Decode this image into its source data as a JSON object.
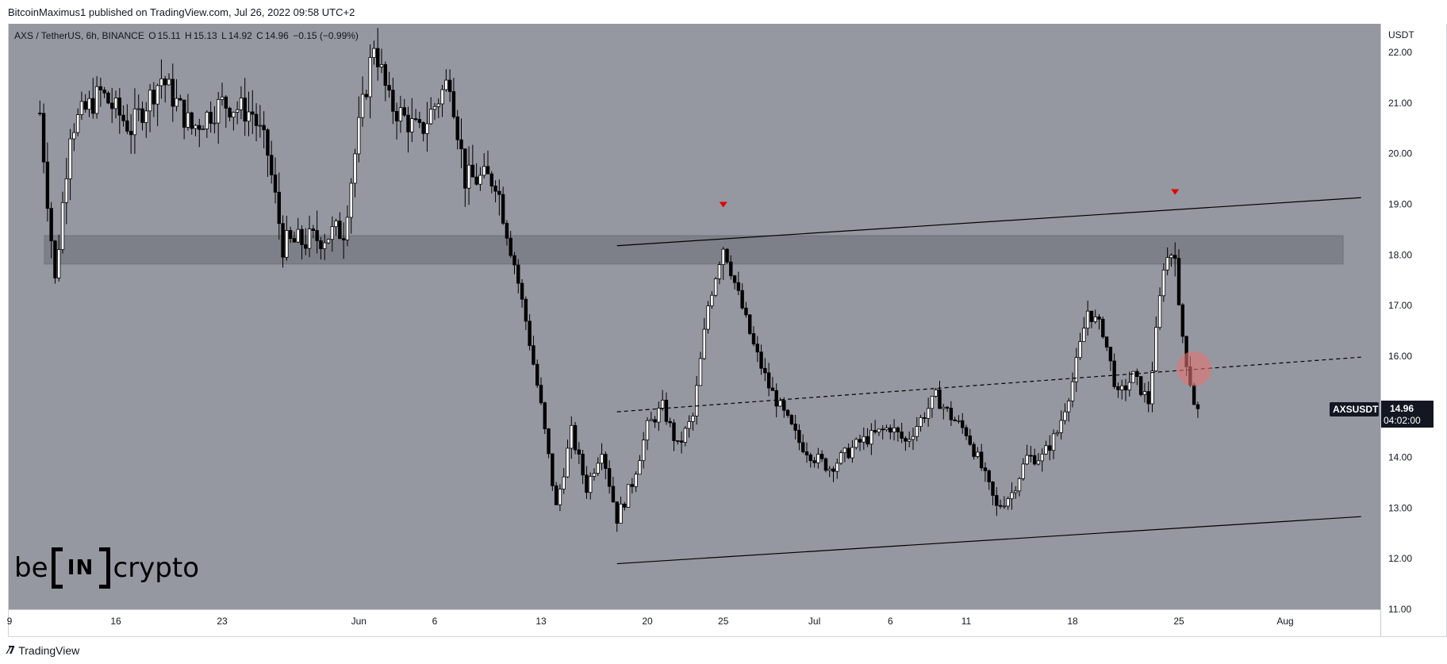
{
  "header": {
    "publisher": "BitcoinMaximus1 published on TradingView.com, Jul 26, 2022 09:58 UTC+2"
  },
  "legend": {
    "symbol": "AXS / TetherUS, 6h, BINANCE",
    "o_label": "O",
    "o_value": "15.11",
    "h_label": "H",
    "h_value": "15.13",
    "l_label": "L",
    "l_value": "14.92",
    "c_label": "C",
    "c_value": "14.96",
    "change": "−0.15 (−0.99%)"
  },
  "price_badge": {
    "ticker": "AXSUSDT",
    "price": "14.96",
    "countdown": "04:02:00"
  },
  "footer": {
    "brand": "TradingView"
  },
  "brand_logo": {
    "left": "be",
    "box": "IN",
    "right": "crypto"
  },
  "colors": {
    "chart_bg": "#9598a1",
    "candle": "#000000",
    "zone": "#7d8088",
    "marker": "#e00000",
    "circle": "#e57373"
  },
  "chart_data": {
    "type": "candlestick",
    "symbol": "AXS / TetherUS",
    "interval": "6h",
    "exchange": "BINANCE",
    "y_axis_unit": "USDT",
    "ylim": [
      10.92,
      22.6
    ],
    "y_ticks": [
      "22.00",
      "21.00",
      "20.00",
      "19.00",
      "18.00",
      "17.00",
      "16.00",
      "15.00",
      "14.00",
      "13.00",
      "12.00",
      "11.00"
    ],
    "x_ticks": [
      {
        "label": "9",
        "date": "2022-05-09"
      },
      {
        "label": "16",
        "date": "2022-05-16"
      },
      {
        "label": "23",
        "date": "2022-05-23"
      },
      {
        "label": "Jun",
        "date": "2022-06-01"
      },
      {
        "label": "6",
        "date": "2022-06-06"
      },
      {
        "label": "13",
        "date": "2022-06-13"
      },
      {
        "label": "20",
        "date": "2022-06-20"
      },
      {
        "label": "25",
        "date": "2022-06-25"
      },
      {
        "label": "Jul",
        "date": "2022-07-01"
      },
      {
        "label": "6",
        "date": "2022-07-06"
      },
      {
        "label": "11",
        "date": "2022-07-11"
      },
      {
        "label": "18",
        "date": "2022-07-18"
      },
      {
        "label": "25",
        "date": "2022-07-25"
      },
      {
        "label": "Aug",
        "date": "2022-08-01"
      }
    ],
    "price_path": [
      [
        "2022-05-11",
        20.8
      ],
      [
        "2022-05-12",
        17.5
      ],
      [
        "2022-05-13",
        20.5
      ],
      [
        "2022-05-15",
        21.2
      ],
      [
        "2022-05-17",
        20.5
      ],
      [
        "2022-05-19",
        21.5
      ],
      [
        "2022-05-21",
        20.5
      ],
      [
        "2022-05-23",
        21.0
      ],
      [
        "2022-05-25",
        20.8
      ],
      [
        "2022-05-26",
        20.0
      ],
      [
        "2022-05-27",
        18.2
      ],
      [
        "2022-05-29",
        18.3
      ],
      [
        "2022-05-31",
        18.5
      ],
      [
        "2022-06-01",
        20.5
      ],
      [
        "2022-06-02",
        22.2
      ],
      [
        "2022-06-03",
        21.0
      ],
      [
        "2022-06-05",
        20.4
      ],
      [
        "2022-06-07",
        21.5
      ],
      [
        "2022-06-08",
        19.5
      ],
      [
        "2022-06-10",
        19.5
      ],
      [
        "2022-06-11",
        18.2
      ],
      [
        "2022-06-12",
        16.7
      ],
      [
        "2022-06-13",
        15.0
      ],
      [
        "2022-06-14",
        13.0
      ],
      [
        "2022-06-15",
        14.5
      ],
      [
        "2022-06-16",
        13.4
      ],
      [
        "2022-06-17",
        14.2
      ],
      [
        "2022-06-18",
        12.8
      ],
      [
        "2022-06-19",
        13.5
      ],
      [
        "2022-06-20",
        14.6
      ],
      [
        "2022-06-21",
        15.0
      ],
      [
        "2022-06-22",
        14.2
      ],
      [
        "2022-06-23",
        14.8
      ],
      [
        "2022-06-24",
        17.0
      ],
      [
        "2022-06-25",
        18.2
      ],
      [
        "2022-06-26",
        17.2
      ],
      [
        "2022-06-27",
        16.2
      ],
      [
        "2022-06-28",
        15.4
      ],
      [
        "2022-06-30",
        14.3
      ],
      [
        "2022-07-01",
        14.0
      ],
      [
        "2022-07-02",
        13.8
      ],
      [
        "2022-07-04",
        14.3
      ],
      [
        "2022-07-06",
        14.6
      ],
      [
        "2022-07-07",
        14.3
      ],
      [
        "2022-07-09",
        15.2
      ],
      [
        "2022-07-10",
        14.8
      ],
      [
        "2022-07-11",
        14.5
      ],
      [
        "2022-07-12",
        13.8
      ],
      [
        "2022-07-13",
        13.0
      ],
      [
        "2022-07-14",
        13.3
      ],
      [
        "2022-07-15",
        14.0
      ],
      [
        "2022-07-16",
        14.0
      ],
      [
        "2022-07-17",
        14.5
      ],
      [
        "2022-07-18",
        15.5
      ],
      [
        "2022-07-19",
        16.9
      ],
      [
        "2022-07-20",
        16.5
      ],
      [
        "2022-07-21",
        15.2
      ],
      [
        "2022-07-22",
        15.6
      ],
      [
        "2022-07-23",
        15.1
      ],
      [
        "2022-07-24",
        17.8
      ],
      [
        "2022-07-24T18:00",
        18.2
      ],
      [
        "2022-07-25",
        16.9
      ],
      [
        "2022-07-25T12:00",
        15.9
      ],
      [
        "2022-07-26",
        15.1
      ],
      [
        "2022-07-26T06:00",
        14.96
      ]
    ],
    "resistance_zone": {
      "from": 17.82,
      "to": 18.38
    },
    "trend_lines": [
      {
        "style": "solid",
        "points": [
          [
            "2022-06-18",
            18.18
          ],
          [
            "2022-08-06",
            19.13
          ]
        ]
      },
      {
        "style": "dashed",
        "points": [
          [
            "2022-06-18",
            14.9
          ],
          [
            "2022-08-06",
            15.98
          ]
        ]
      },
      {
        "style": "solid",
        "points": [
          [
            "2022-06-18",
            11.9
          ],
          [
            "2022-08-06",
            12.83
          ]
        ]
      }
    ],
    "markers": [
      {
        "shape": "triangle-down",
        "date": "2022-06-25",
        "value": 19.0
      },
      {
        "shape": "triangle-down",
        "date": "2022-07-24T18:00",
        "value": 19.25
      }
    ],
    "highlight_circle": {
      "date": "2022-07-26",
      "value": 15.75
    },
    "last_price": 14.96
  }
}
